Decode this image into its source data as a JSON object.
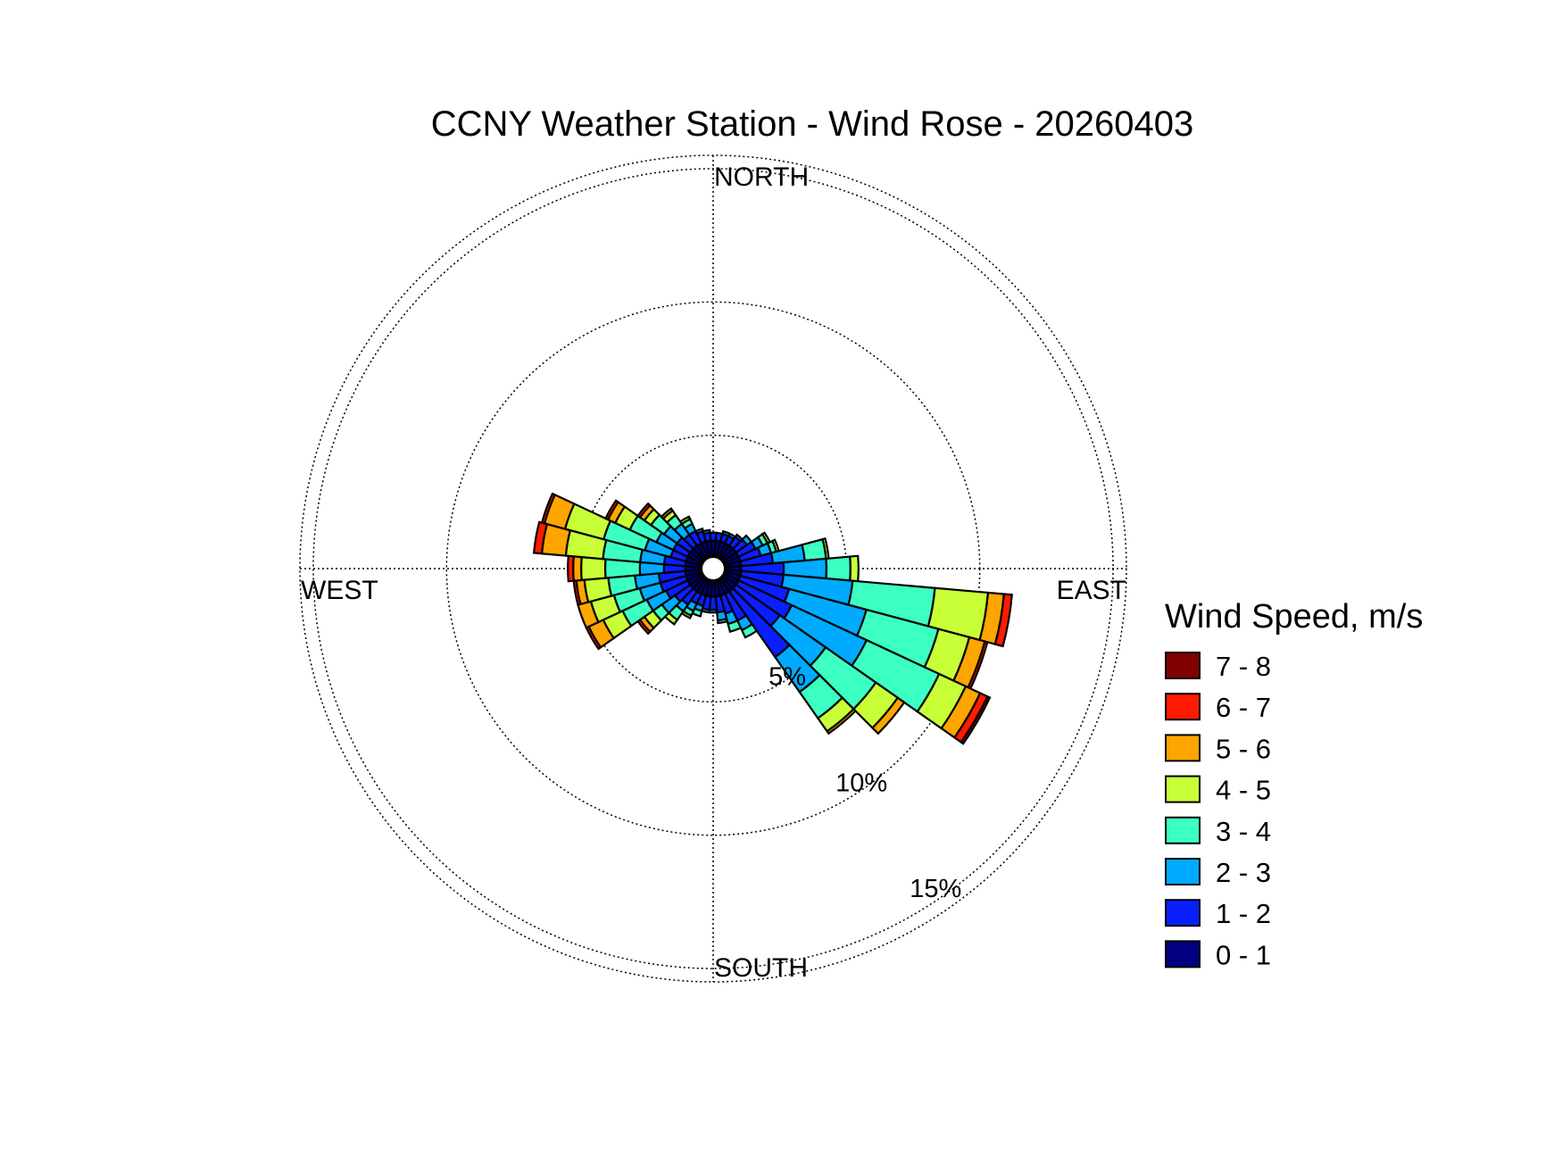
{
  "chart_data": {
    "type": "windrose",
    "title": "CCNY Weather Station - Wind Rose - 20260403",
    "direction_labels": {
      "north": "NORTH",
      "east": "EAST",
      "south": "SOUTH",
      "west": "WEST"
    },
    "rings": [
      {
        "value": 5,
        "label": "5%"
      },
      {
        "value": 10,
        "label": "10%"
      },
      {
        "value": 15,
        "label": "15%"
      }
    ],
    "rmax": 15.5,
    "calm_radius": 0.45,
    "legend": {
      "title": "Wind Speed, m/s",
      "placement": "right",
      "bins": [
        {
          "label": "7 - 8",
          "color": "#800000"
        },
        {
          "label": "6 - 7",
          "color": "#ff1a00"
        },
        {
          "label": "5 - 6",
          "color": "#ffa500"
        },
        {
          "label": "4 - 5",
          "color": "#c8ff37"
        },
        {
          "label": "3 - 4",
          "color": "#3cffc2"
        },
        {
          "label": "2 - 3",
          "color": "#00aaff"
        },
        {
          "label": "1 - 2",
          "color": "#0a1eff"
        },
        {
          "label": "0 - 1",
          "color": "#000080"
        }
      ]
    },
    "sector_width_deg": 10,
    "bin_order": [
      "0 - 1",
      "1 - 2",
      "2 - 3",
      "3 - 4",
      "4 - 5",
      "5 - 6",
      "6 - 7",
      "7 - 8"
    ],
    "sectors": [
      {
        "direction": 0,
        "values": [
          0.6,
          0.3,
          0,
          0,
          0,
          0,
          0,
          0
        ]
      },
      {
        "direction": 10,
        "values": [
          0.6,
          0.3,
          0,
          0,
          0,
          0,
          0,
          0
        ]
      },
      {
        "direction": 20,
        "values": [
          0.6,
          0.3,
          0.1,
          0,
          0,
          0,
          0,
          0
        ]
      },
      {
        "direction": 30,
        "values": [
          0.6,
          0.3,
          0.1,
          0,
          0,
          0,
          0,
          0
        ]
      },
      {
        "direction": 40,
        "values": [
          0.6,
          0.4,
          0.1,
          0,
          0,
          0,
          0,
          0
        ]
      },
      {
        "direction": 50,
        "values": [
          0.6,
          0.5,
          0.2,
          0,
          0,
          0,
          0,
          0
        ]
      },
      {
        "direction": 60,
        "values": [
          0.6,
          0.7,
          0.3,
          0.2,
          0.1,
          0,
          0,
          0
        ]
      },
      {
        "direction": 70,
        "values": [
          0.6,
          0.8,
          0.4,
          0.2,
          0.1,
          0,
          0,
          0
        ]
      },
      {
        "direction": 80,
        "values": [
          0.6,
          1.2,
          1.2,
          0.8,
          0.1,
          0,
          0,
          0
        ]
      },
      {
        "direction": 90,
        "values": [
          0.6,
          1.6,
          1.6,
          0.9,
          0.3,
          0,
          0,
          0
        ]
      },
      {
        "direction": 100,
        "values": [
          0.6,
          1.6,
          2.6,
          3.1,
          2.0,
          0.6,
          0.3,
          0
        ]
      },
      {
        "direction": 110,
        "values": [
          0.6,
          1.9,
          3.0,
          2.8,
          1.2,
          0.6,
          0.1,
          0
        ]
      },
      {
        "direction": 120,
        "values": [
          0.6,
          2.2,
          3.1,
          3.0,
          1.1,
          0.6,
          0.3,
          0.1
        ]
      },
      {
        "direction": 130,
        "values": [
          0.6,
          2.0,
          2.1,
          2.3,
          1.0,
          0.3,
          0,
          0
        ]
      },
      {
        "direction": 140,
        "values": [
          0.6,
          3.0,
          1.6,
          1.2,
          0.6,
          0.1,
          0,
          0
        ]
      },
      {
        "direction": 150,
        "values": [
          0.6,
          1.1,
          0.4,
          0.3,
          0,
          0,
          0,
          0
        ]
      },
      {
        "direction": 160,
        "values": [
          0.6,
          0.7,
          0.4,
          0.3,
          0,
          0,
          0,
          0
        ]
      },
      {
        "direction": 170,
        "values": [
          0.6,
          0.6,
          0.3,
          0.1,
          0,
          0,
          0,
          0
        ]
      },
      {
        "direction": 180,
        "values": [
          0.6,
          0.5,
          0.1,
          0,
          0,
          0,
          0,
          0
        ]
      },
      {
        "direction": 190,
        "values": [
          0.6,
          0.5,
          0.1,
          0,
          0,
          0,
          0,
          0
        ]
      },
      {
        "direction": 200,
        "values": [
          0.6,
          0.4,
          0.2,
          0.2,
          0,
          0,
          0,
          0
        ]
      },
      {
        "direction": 210,
        "values": [
          0.6,
          0.4,
          0.3,
          0.2,
          0.1,
          0,
          0,
          0
        ]
      },
      {
        "direction": 220,
        "values": [
          0.6,
          0.6,
          0.3,
          0.4,
          0.2,
          0,
          0,
          0
        ]
      },
      {
        "direction": 230,
        "values": [
          0.6,
          0.7,
          0.6,
          0.4,
          0.4,
          0.2,
          0.1,
          0
        ]
      },
      {
        "direction": 240,
        "values": [
          0.6,
          0.9,
          0.8,
          1.0,
          0.8,
          0.6,
          0.1,
          0
        ]
      },
      {
        "direction": 250,
        "values": [
          0.6,
          1.0,
          0.8,
          1.0,
          0.9,
          0.5,
          0,
          0
        ]
      },
      {
        "direction": 260,
        "values": [
          0.6,
          1.0,
          0.9,
          1.0,
          0.9,
          0.3,
          0.1,
          0
        ]
      },
      {
        "direction": 270,
        "values": [
          0.6,
          0.8,
          0.9,
          1.3,
          0.9,
          0.3,
          0.2,
          0
        ]
      },
      {
        "direction": 280,
        "values": [
          0.6,
          0.8,
          0.9,
          1.4,
          1.4,
          0.9,
          0.3,
          0
        ]
      },
      {
        "direction": 290,
        "values": [
          0.6,
          0.6,
          1.0,
          1.6,
          1.5,
          0.8,
          0.1,
          0
        ]
      },
      {
        "direction": 300,
        "values": [
          0.6,
          0.6,
          0.7,
          1.1,
          0.6,
          0.3,
          0.1,
          0
        ]
      },
      {
        "direction": 310,
        "values": [
          0.6,
          0.6,
          0.6,
          0.6,
          0.3,
          0.2,
          0.1,
          0
        ]
      },
      {
        "direction": 320,
        "values": [
          0.6,
          0.5,
          0.5,
          0.4,
          0.2,
          0.1,
          0,
          0
        ]
      },
      {
        "direction": 330,
        "values": [
          0.6,
          0.5,
          0.3,
          0.2,
          0.1,
          0,
          0,
          0
        ]
      },
      {
        "direction": 340,
        "values": [
          0.6,
          0.4,
          0.1,
          0,
          0,
          0,
          0,
          0
        ]
      },
      {
        "direction": 350,
        "values": [
          0.6,
          0.3,
          0.1,
          0,
          0,
          0,
          0,
          0
        ]
      }
    ]
  }
}
